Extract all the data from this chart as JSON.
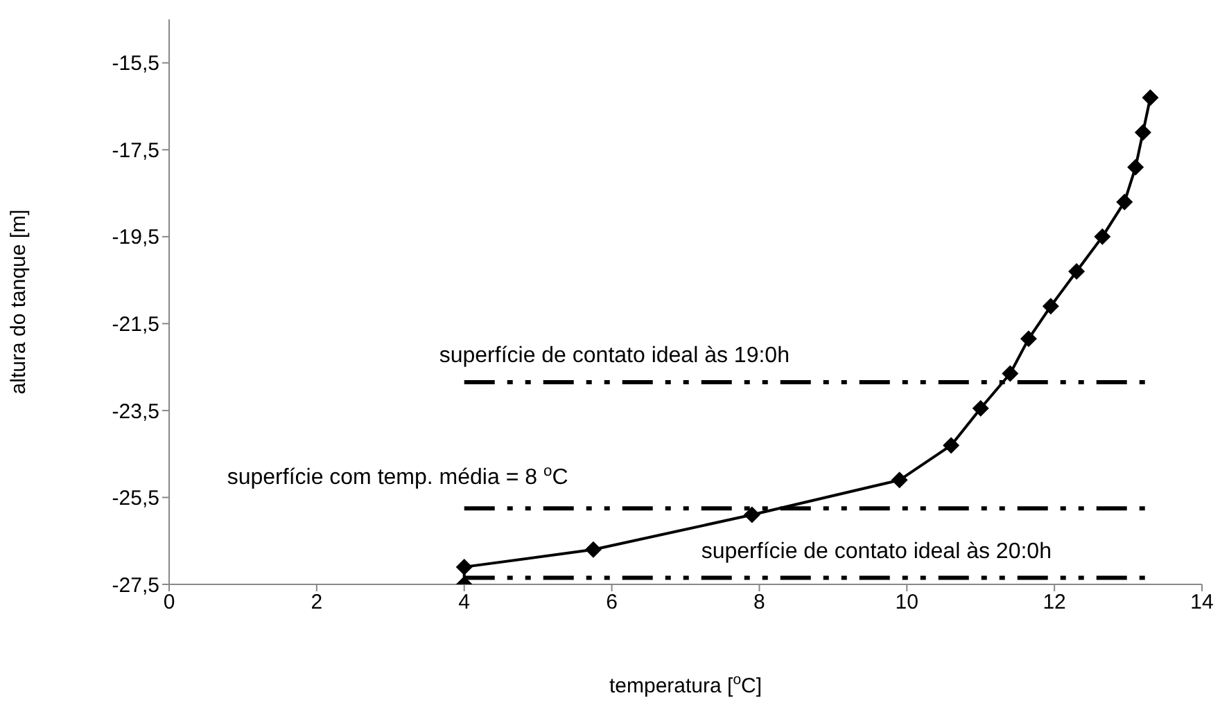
{
  "chart_data": {
    "type": "line",
    "xlabel": "temperatura [$^{o}$C]",
    "ylabel": "altura do tanque [m]",
    "xlim": [
      0,
      14
    ],
    "xticks": [
      0,
      2,
      4,
      6,
      8,
      10,
      12,
      14
    ],
    "ylim": [
      -27.5,
      -14.5
    ],
    "yticks": [
      {
        "value": -27.5,
        "label": "-27,5"
      },
      {
        "value": -25.5,
        "label": "-25,5"
      },
      {
        "value": -23.5,
        "label": "-23,5"
      },
      {
        "value": -21.5,
        "label": "-21,5"
      },
      {
        "value": -19.5,
        "label": "-19,5"
      },
      {
        "value": -17.5,
        "label": "-17,5"
      },
      {
        "value": -15.5,
        "label": "-15,5"
      }
    ],
    "series": [
      {
        "color": "#000000",
        "marker": "diamond",
        "line_style": "solid",
        "x": [
          4,
          4,
          5.75,
          7.9,
          9.9,
          10.6,
          11.0,
          11.4,
          11.65,
          11.95,
          12.3,
          12.65,
          12.95,
          13.1,
          13.2,
          13.3
        ],
        "values": [
          -27.5,
          -27.1,
          -26.7,
          -25.9,
          -25.1,
          -24.3,
          -23.45,
          -22.65,
          -21.85,
          -21.1,
          -20.3,
          -19.5,
          -18.7,
          -17.9,
          -17.1,
          -16.3
        ]
      },
      {
        "name": "superfície de contato ideal às 19:0h",
        "color": "#000000",
        "marker": "none",
        "line_style": "dashed",
        "x": [
          4,
          13.3
        ],
        "values": [
          -22.85,
          -22.85
        ]
      },
      {
        "name": "superfície com temp. média = 8 $^{o}$C",
        "color": "#000000",
        "marker": "none",
        "line_style": "dashed",
        "x": [
          4,
          13.3
        ],
        "values": [
          -25.75,
          -25.75
        ]
      },
      {
        "name": "superfície de contato ideal às 20:0h",
        "color": "#000000",
        "marker": "none",
        "line_style": "dashed",
        "x": [
          4,
          13.3
        ],
        "values": [
          -27.35,
          -27.35
        ]
      }
    ]
  }
}
